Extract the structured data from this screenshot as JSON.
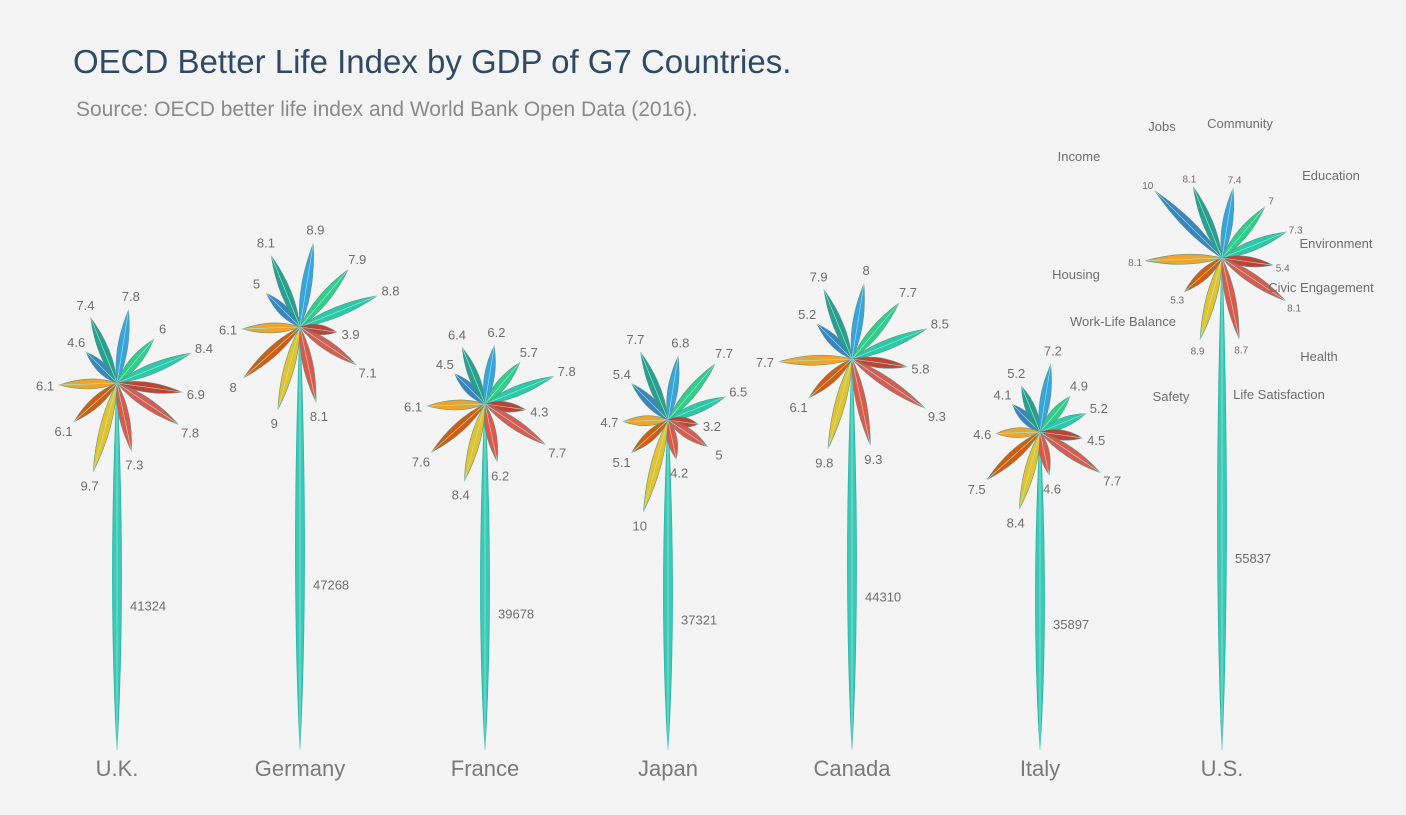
{
  "chart_data": {
    "type": "radial-petal",
    "title": "OECD Better Life Index by GDP of G7 Countries.",
    "subtitle": "Source: OECD better life index and World Bank Open Data (2016).",
    "categories": [
      "Income",
      "Jobs",
      "Community",
      "Education",
      "Environment",
      "Civic Engagement",
      "Health",
      "Life Satisfaction",
      "Safety",
      "Work-Life Balance",
      "Housing"
    ],
    "category_colors": [
      "#2e7fc2",
      "#1f9c8a",
      "#2f9fdc",
      "#27cc85",
      "#22c7a4",
      "#c0392b",
      "#d9534a",
      "#e05040",
      "#e6c020",
      "#d35400",
      "#f0a020"
    ],
    "countries": [
      {
        "name": "U.K.",
        "gdp": 41324,
        "gdp_label": "41324",
        "values": [
          4.6,
          7.4,
          7.8,
          6,
          8.4,
          6.9,
          7.8,
          7.3,
          9.7,
          6.1,
          6.1
        ],
        "labels": [
          "4.6",
          "7.4",
          "7.8",
          "6",
          "8.4",
          "6.9",
          "7.8",
          "7.3",
          "9.7",
          "6.1",
          "6.1"
        ]
      },
      {
        "name": "Germany",
        "gdp": 47268,
        "gdp_label": "47268",
        "values": [
          5,
          8.1,
          8.9,
          7.9,
          8.8,
          3.9,
          7.1,
          8.1,
          9,
          8,
          6.1
        ],
        "labels": [
          "5",
          "8.1",
          "8.9",
          "7.9",
          "8.8",
          "3.9",
          "7.1",
          "8.1",
          "9",
          "8",
          "6.1"
        ]
      },
      {
        "name": "France",
        "gdp": 39678,
        "gdp_label": "39678",
        "values": [
          4.5,
          6.4,
          6.2,
          5.7,
          7.8,
          4.3,
          7.7,
          6.2,
          8.4,
          7.6,
          6.1
        ],
        "labels": [
          "4.5",
          "6.4",
          "6.2",
          "5.7",
          "7.8",
          "4.3",
          "7.7",
          "6.2",
          "8.4",
          "7.6",
          "6.1"
        ]
      },
      {
        "name": "Japan",
        "gdp": 37321,
        "gdp_label": "37321",
        "values": [
          5.4,
          7.7,
          6.8,
          7.7,
          6.5,
          3.2,
          5,
          4.2,
          10,
          5.1,
          4.7
        ],
        "labels": [
          "5.4",
          "7.7",
          "6.8",
          "7.7",
          "6.5",
          "3.2",
          "5",
          "4.2",
          "10",
          "5.1",
          "4.7"
        ]
      },
      {
        "name": "Canada",
        "gdp": 44310,
        "gdp_label": "44310",
        "values": [
          5.2,
          7.9,
          8,
          7.7,
          8.5,
          5.8,
          9.3,
          9.3,
          9.8,
          6.1,
          7.7
        ],
        "labels": [
          "5.2",
          "7.9",
          "8",
          "7.7",
          "8.5",
          "5.8",
          "9.3",
          "9.3",
          "9.8",
          "6.1",
          "7.7"
        ]
      },
      {
        "name": "Italy",
        "gdp": 35897,
        "gdp_label": "35897",
        "values": [
          4.1,
          5.2,
          7.2,
          4.9,
          5.2,
          4.5,
          7.7,
          4.6,
          8.4,
          7.5,
          4.6
        ],
        "labels": [
          "4.1",
          "5.2",
          "7.2",
          "4.9",
          "5.2",
          "4.5",
          "7.7",
          "4.6",
          "8.4",
          "7.5",
          "4.6"
        ]
      },
      {
        "name": "U.S.",
        "gdp": 55837,
        "gdp_label": "55837",
        "values": [
          10,
          8.1,
          7.4,
          7,
          7.3,
          5.4,
          8.1,
          8.7,
          8.9,
          5.3,
          8.1
        ],
        "labels": [
          "10",
          "8.1",
          "7.4",
          "7",
          "7.3",
          "5.4",
          "8.1",
          "8.7",
          "8.9",
          "5.3",
          "8.1"
        ],
        "show_category_labels": true
      }
    ]
  }
}
